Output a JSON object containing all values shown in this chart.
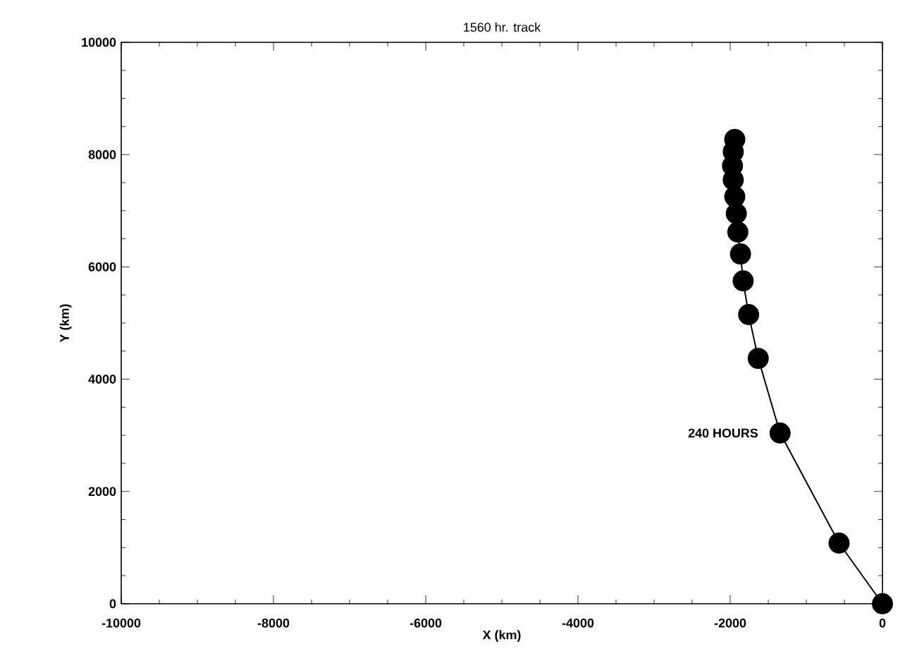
{
  "chart_data": {
    "type": "line",
    "title": "1560 hr. track",
    "xlabel": "X (km)",
    "ylabel": "Y (km)",
    "x": [
      0,
      -570,
      -1345,
      -1632,
      -1758,
      -1830,
      -1865,
      -1900,
      -1920,
      -1940,
      -1960,
      -1970,
      -1960,
      -1940
    ],
    "values": [
      0,
      1080,
      3040,
      4370,
      5150,
      5750,
      6230,
      6620,
      6950,
      7250,
      7550,
      7800,
      8050,
      8270
    ],
    "color": "#000000",
    "marker": "circle",
    "line_style": "solid",
    "xlim": [
      -10000,
      0
    ],
    "ylim": [
      0,
      10000
    ],
    "xticks": [
      -10000,
      -8000,
      -6000,
      -4000,
      -2000,
      0
    ],
    "yticks": [
      0,
      2000,
      4000,
      6000,
      8000,
      10000
    ],
    "annotations": [
      {
        "text": "240 HOURS",
        "x": -1345,
        "y": 3040
      }
    ]
  }
}
